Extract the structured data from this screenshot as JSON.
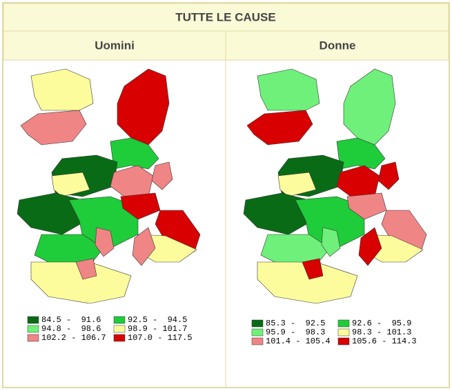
{
  "header": {
    "title": "TUTTE LE CAUSE"
  },
  "panels": [
    {
      "title": "Uomini",
      "legend": [
        {
          "label": "84.5 -  91.6",
          "color": "#0a6b16"
        },
        {
          "label": "92.5 -  94.5",
          "color": "#1fcc3a"
        },
        {
          "label": "94.8 -  98.6",
          "color": "#6ff07a"
        },
        {
          "label": "98.9 - 101.7",
          "color": "#fcfc9c"
        },
        {
          "label": "102.2 - 106.7",
          "color": "#f08585"
        },
        {
          "label": "107.0 - 117.5",
          "color": "#d80000"
        }
      ]
    },
    {
      "title": "Donne",
      "legend": [
        {
          "label": "85.3 -  92.5",
          "color": "#0a6b16"
        },
        {
          "label": "92.6 -  95.9",
          "color": "#1fcc3a"
        },
        {
          "label": "95.9 -  98.3",
          "color": "#6ff07a"
        },
        {
          "label": "98.3 - 101.3",
          "color": "#fcfc9c"
        },
        {
          "label": "101.4 - 105.4",
          "color": "#f08585"
        },
        {
          "label": "105.6 - 114.3",
          "color": "#d80000"
        }
      ]
    }
  ]
}
